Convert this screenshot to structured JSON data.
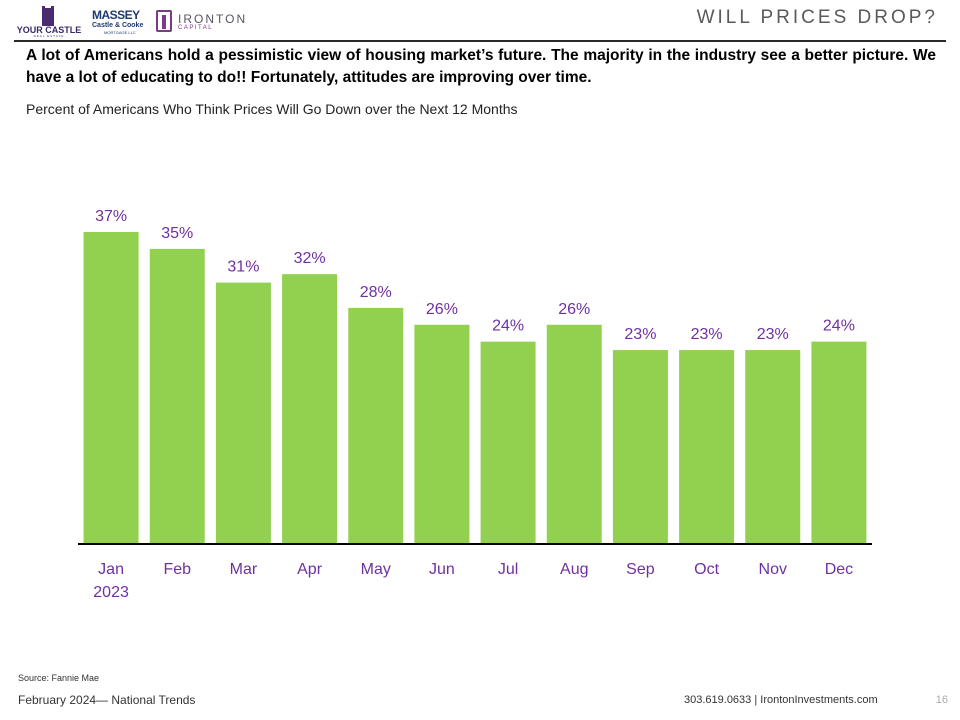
{
  "header": {
    "logos": {
      "your_castle": "YOUR CASTLE",
      "your_castle_sub": "REAL ESTATE",
      "massey": "MASSEY",
      "castle_cooke": "Castle & Cooke",
      "mortgage": "MORTGAGE LLC",
      "ironton": "IRONTON",
      "ironton_sub": "CAPITAL"
    },
    "title": "WILL PRICES DROP?"
  },
  "headline": "A lot of Americans hold a pessimistic view of housing market’s future.  The majority in the industry see a better picture.  We have a lot of educating to do!!  Fortunately, attitudes are improving over time.",
  "subtitle": "Percent of Americans Who Think Prices Will Go Down over the Next 12 Months",
  "chart_data": {
    "type": "bar",
    "categories": [
      "Jan\n2023",
      "Feb",
      "Mar",
      "Apr",
      "May",
      "Jun",
      "Jul",
      "Aug",
      "Sep",
      "Oct",
      "Nov",
      "Dec"
    ],
    "values": [
      37,
      35,
      31,
      32,
      28,
      26,
      24,
      26,
      23,
      23,
      23,
      24
    ],
    "value_labels": [
      "37%",
      "35%",
      "31%",
      "32%",
      "28%",
      "26%",
      "24%",
      "26%",
      "23%",
      "23%",
      "23%",
      "24%"
    ],
    "unit": "%",
    "ylim": [
      0,
      37
    ],
    "grid": false,
    "legend": "none",
    "bar_color": "#92d050",
    "label_color": "#7030a0",
    "axis_color": "#000000"
  },
  "footer": {
    "source": "Source: Fannie Mae",
    "left": "February 2024— National Trends",
    "right": "303.619.0633 | IrontonInvestments.com",
    "page_number": "16"
  }
}
